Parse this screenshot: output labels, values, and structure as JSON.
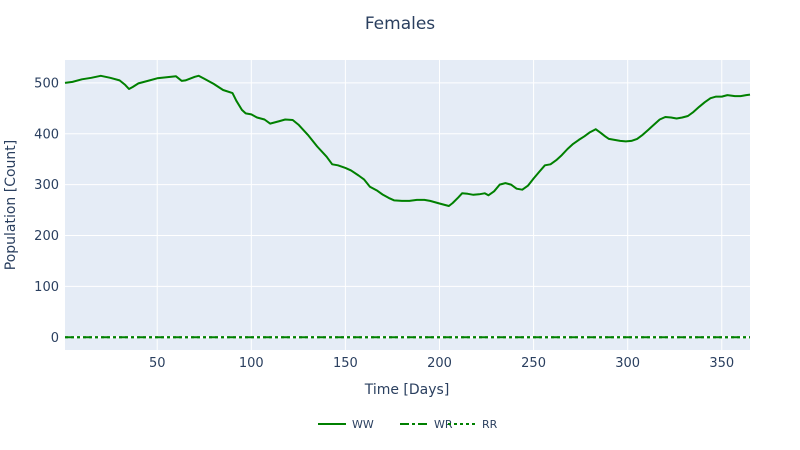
{
  "chart_data": {
    "type": "line",
    "title": "Females",
    "xlabel": "Time [Days]",
    "ylabel": "Population [Count]",
    "xlim": [
      1,
      365
    ],
    "ylim": [
      -25,
      545
    ],
    "xticks": [
      50,
      100,
      150,
      200,
      250,
      300,
      350
    ],
    "yticks": [
      0,
      100,
      200,
      300,
      400,
      500
    ],
    "grid": true,
    "legend_position": "bottom-center",
    "colors": {
      "line": "#008000",
      "plot_bg": "#e5ecf6",
      "grid": "#ffffff",
      "text": "#2a3f5f"
    },
    "series": [
      {
        "name": "WW",
        "dash": "solid",
        "x": [
          1,
          5,
          10,
          15,
          20,
          25,
          30,
          33,
          35,
          37,
          40,
          45,
          50,
          55,
          60,
          63,
          65,
          70,
          72,
          75,
          80,
          85,
          90,
          92,
          95,
          97,
          100,
          103,
          107,
          110,
          115,
          118,
          122,
          125,
          130,
          135,
          140,
          143,
          146,
          150,
          153,
          157,
          160,
          163,
          167,
          170,
          173,
          176,
          180,
          184,
          188,
          192,
          195,
          200,
          203,
          205,
          207,
          210,
          212,
          215,
          218,
          221,
          224,
          226,
          229,
          232,
          235,
          238,
          241,
          244,
          247,
          250,
          253,
          256,
          259,
          262,
          265,
          268,
          271,
          274,
          277,
          280,
          283,
          286,
          288,
          290,
          293,
          296,
          299,
          302,
          305,
          308,
          311,
          314,
          317,
          320,
          323,
          326,
          329,
          332,
          335,
          338,
          341,
          344,
          347,
          350,
          353,
          355,
          357,
          360,
          363,
          365
        ],
        "y": [
          500,
          502,
          507,
          510,
          514,
          510,
          505,
          496,
          488,
          492,
          499,
          504,
          509,
          511,
          513,
          504,
          505,
          512,
          514,
          508,
          498,
          486,
          480,
          465,
          447,
          440,
          438,
          432,
          428,
          420,
          425,
          428,
          427,
          418,
          398,
          375,
          355,
          340,
          338,
          333,
          328,
          318,
          310,
          296,
          288,
          280,
          274,
          269,
          268,
          268,
          270,
          270,
          268,
          263,
          260,
          258,
          264,
          275,
          283,
          282,
          280,
          281,
          283,
          279,
          287,
          300,
          303,
          300,
          292,
          290,
          298,
          312,
          325,
          338,
          340,
          348,
          358,
          370,
          380,
          388,
          395,
          403,
          409,
          401,
          395,
          390,
          388,
          386,
          385,
          386,
          390,
          398,
          408,
          418,
          428,
          433,
          432,
          430,
          432,
          435,
          443,
          453,
          462,
          470,
          473,
          473,
          476,
          475,
          474,
          474,
          476,
          477
        ]
      },
      {
        "name": "WR",
        "dash": "dashdot",
        "x": [
          1,
          365
        ],
        "y": [
          0,
          0
        ]
      },
      {
        "name": "RR",
        "dash": "dot",
        "x": [
          1,
          365
        ],
        "y": [
          0,
          0
        ]
      }
    ]
  }
}
